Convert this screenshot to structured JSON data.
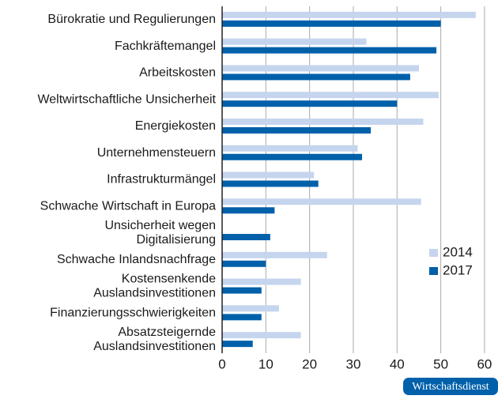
{
  "chart_data": {
    "type": "bar",
    "orientation": "horizontal",
    "categories": [
      "Bürokratie und Regulierungen",
      "Fachkräftemangel",
      "Arbeitskosten",
      "Weltwirtschaftliche Unsicherheit",
      "Energiekosten",
      "Unternehmensteuern",
      "Infrastrukturmängel",
      "Schwache Wirtschaft in Europa",
      "Unsicherheit wegen\nDigitalisierung",
      "Schwache Inlandsnachfrage",
      "Kostensenkende\nAuslandsinvestitionen",
      "Finanzierungsschwierigkeiten",
      "Absatzsteigernde\nAuslandsinvestitionen"
    ],
    "series": [
      {
        "name": "2014",
        "color": "#c5d5ee",
        "values": [
          58,
          33,
          45,
          49.5,
          46,
          31,
          21,
          45.5,
          null,
          24,
          18,
          13,
          18
        ]
      },
      {
        "name": "2017",
        "color": "#0060aa",
        "values": [
          50,
          49,
          43,
          40,
          34,
          32,
          22,
          12,
          11,
          10,
          9,
          9,
          7
        ]
      }
    ],
    "xlim": [
      0,
      62
    ],
    "xticks": [
      0,
      10,
      20,
      30,
      40,
      50,
      60
    ],
    "grid": true,
    "legend_position": "right"
  },
  "badge": "Wirtschaftsdienst"
}
